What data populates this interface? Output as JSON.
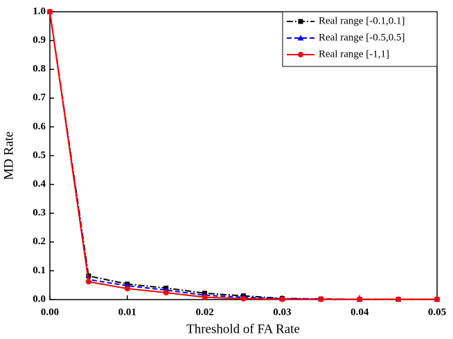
{
  "chart_data": {
    "type": "line",
    "x_label": "Threshold of FA Rate",
    "y_label": "MD Rate",
    "x": [
      0,
      0.005,
      0.01,
      0.015,
      0.02,
      0.025,
      0.03,
      0.035,
      0.04,
      0.045,
      0.05
    ],
    "series": [
      {
        "name": "Real range [-0.1,0.1]",
        "color": "#000000",
        "marker": "square",
        "dash": "dash-dot",
        "values": [
          1.0,
          0.082,
          0.054,
          0.04,
          0.022,
          0.013,
          0.004,
          0.002,
          0.001,
          0.001,
          0.001
        ]
      },
      {
        "name": "Real range [-0.5,0.5]",
        "color": "#0000ff",
        "marker": "triangle",
        "dash": "dash",
        "values": [
          1.0,
          0.07,
          0.048,
          0.033,
          0.015,
          0.008,
          0.003,
          0.002,
          0.001,
          0.001,
          0.001
        ]
      },
      {
        "name": "Real range [-1,1]",
        "color": "#ff0000",
        "marker": "circle",
        "dash": "solid",
        "values": [
          1.0,
          0.062,
          0.038,
          0.024,
          0.008,
          0.003,
          0.001,
          0.001,
          0.001,
          0.001,
          0.001
        ]
      }
    ],
    "xlim": [
      0,
      0.05
    ],
    "ylim": [
      0,
      1.0
    ],
    "xticks": [
      {
        "value": 0,
        "label": "0.00"
      },
      0.01,
      0.02,
      0.03,
      0.04,
      0.05
    ],
    "yticks": [
      {
        "value": 0,
        "label": "0.0"
      },
      0.1,
      0.2,
      0.3,
      0.4,
      0.5,
      0.6,
      0.7,
      0.8,
      0.9,
      {
        "value": 1.0,
        "label": "1.0"
      }
    ],
    "grid": false,
    "legend": "upper right"
  }
}
